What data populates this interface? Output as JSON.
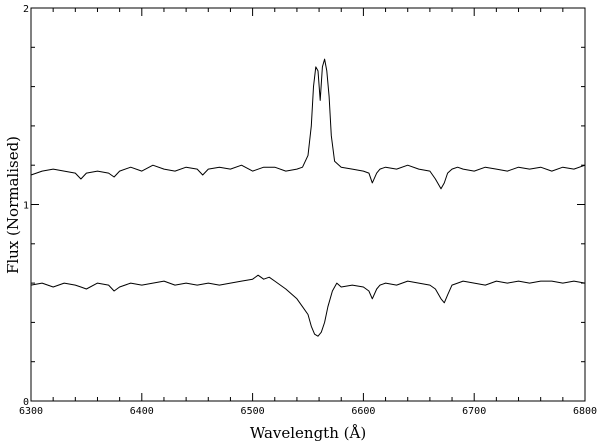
{
  "chart_data": {
    "type": "line",
    "title": "",
    "xlabel": "Wavelength (Å)",
    "ylabel": "Flux (Normalised)",
    "xlim": [
      6300,
      6800
    ],
    "ylim": [
      0,
      2
    ],
    "grid": false,
    "x_ticks": [
      6300,
      6400,
      6500,
      6600,
      6700,
      6800
    ],
    "y_ticks": [
      0,
      1,
      2
    ],
    "series": [
      {
        "x": [
          6300,
          6310,
          6320,
          6330,
          6340,
          6345,
          6350,
          6360,
          6370,
          6375,
          6380,
          6390,
          6400,
          6410,
          6420,
          6430,
          6440,
          6450,
          6455,
          6460,
          6470,
          6480,
          6490,
          6500,
          6510,
          6520,
          6530,
          6540,
          6545,
          6550,
          6553,
          6555,
          6557,
          6559,
          6561,
          6563,
          6565,
          6567,
          6569,
          6571,
          6574,
          6580,
          6590,
          6600,
          6605,
          6608,
          6612,
          6615,
          6620,
          6630,
          6640,
          6650,
          6660,
          6665,
          6670,
          6673,
          6676,
          6680,
          6685,
          6690,
          6700,
          6710,
          6720,
          6730,
          6740,
          6750,
          6760,
          6770,
          6780,
          6790,
          6800
        ],
        "y": [
          1.15,
          1.17,
          1.18,
          1.17,
          1.16,
          1.13,
          1.16,
          1.17,
          1.16,
          1.14,
          1.17,
          1.19,
          1.17,
          1.2,
          1.18,
          1.17,
          1.19,
          1.18,
          1.15,
          1.18,
          1.19,
          1.18,
          1.2,
          1.17,
          1.19,
          1.19,
          1.17,
          1.18,
          1.19,
          1.25,
          1.4,
          1.6,
          1.7,
          1.68,
          1.53,
          1.7,
          1.74,
          1.68,
          1.55,
          1.35,
          1.22,
          1.19,
          1.18,
          1.17,
          1.16,
          1.11,
          1.16,
          1.18,
          1.19,
          1.18,
          1.2,
          1.18,
          1.17,
          1.13,
          1.08,
          1.11,
          1.16,
          1.18,
          1.19,
          1.18,
          1.17,
          1.19,
          1.18,
          1.17,
          1.19,
          1.18,
          1.19,
          1.17,
          1.19,
          1.18,
          1.2
        ]
      },
      {
        "x": [
          6300,
          6310,
          6320,
          6330,
          6340,
          6345,
          6350,
          6360,
          6370,
          6375,
          6380,
          6390,
          6400,
          6410,
          6420,
          6430,
          6440,
          6450,
          6460,
          6470,
          6480,
          6490,
          6500,
          6505,
          6510,
          6515,
          6520,
          6530,
          6540,
          6545,
          6550,
          6553,
          6556,
          6559,
          6562,
          6565,
          6568,
          6572,
          6576,
          6580,
          6590,
          6600,
          6605,
          6608,
          6612,
          6615,
          6620,
          6630,
          6640,
          6650,
          6660,
          6665,
          6670,
          6673,
          6676,
          6680,
          6685,
          6690,
          6700,
          6710,
          6720,
          6730,
          6740,
          6750,
          6760,
          6770,
          6780,
          6790,
          6800
        ],
        "y": [
          0.59,
          0.6,
          0.58,
          0.6,
          0.59,
          0.58,
          0.57,
          0.6,
          0.59,
          0.56,
          0.58,
          0.6,
          0.59,
          0.6,
          0.61,
          0.59,
          0.6,
          0.59,
          0.6,
          0.59,
          0.6,
          0.61,
          0.62,
          0.64,
          0.62,
          0.63,
          0.61,
          0.57,
          0.52,
          0.48,
          0.44,
          0.38,
          0.34,
          0.33,
          0.35,
          0.4,
          0.48,
          0.56,
          0.6,
          0.58,
          0.59,
          0.58,
          0.56,
          0.52,
          0.57,
          0.59,
          0.6,
          0.59,
          0.61,
          0.6,
          0.59,
          0.57,
          0.52,
          0.5,
          0.54,
          0.59,
          0.6,
          0.61,
          0.6,
          0.59,
          0.61,
          0.6,
          0.61,
          0.6,
          0.61,
          0.61,
          0.6,
          0.61,
          0.6
        ]
      }
    ]
  }
}
